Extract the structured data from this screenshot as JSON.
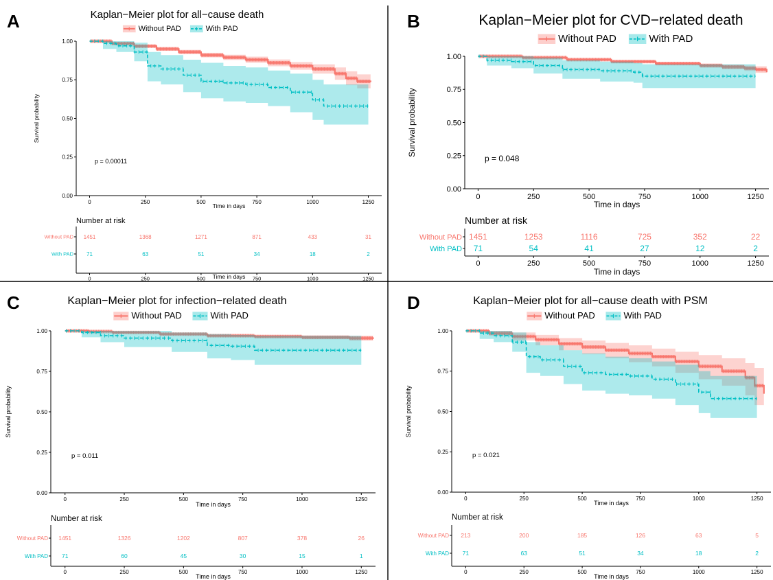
{
  "figure": {
    "title": ""
  },
  "legend_labels": [
    "Without PAD",
    "With PAD"
  ],
  "series_colors": {
    "Without PAD": "#F8766D",
    "With PAD": "#00BFC4"
  },
  "chart_data": [
    {
      "panel": "A",
      "type": "line",
      "subtype": "kaplan-meier",
      "title": "Kaplan−Meier plot for all−cause death",
      "xlabel": "Time in days",
      "ylabel": "Survival probability",
      "xlim": [
        -60,
        1310
      ],
      "ylim": [
        0,
        1
      ],
      "x_ticks": [
        0,
        250,
        500,
        750,
        1000,
        1250
      ],
      "y_ticks": [
        "0.00",
        "0.25",
        "0.50",
        "0.75",
        "1.00"
      ],
      "p_value": "p = 0.00011",
      "legend_position": "top",
      "series": [
        {
          "name": "Without PAD",
          "color": "#F8766D",
          "x": [
            0,
            100,
            200,
            300,
            400,
            500,
            600,
            700,
            800,
            900,
            1000,
            1100,
            1150,
            1200,
            1260
          ],
          "y": [
            1.0,
            0.985,
            0.968,
            0.95,
            0.93,
            0.91,
            0.895,
            0.88,
            0.86,
            0.84,
            0.82,
            0.79,
            0.76,
            0.74,
            0.735
          ],
          "lower": [
            1.0,
            0.978,
            0.958,
            0.938,
            0.916,
            0.895,
            0.878,
            0.86,
            0.838,
            0.815,
            0.79,
            0.75,
            0.715,
            0.695,
            0.69
          ],
          "upper": [
            1.0,
            0.992,
            0.978,
            0.962,
            0.944,
            0.925,
            0.912,
            0.9,
            0.882,
            0.865,
            0.85,
            0.83,
            0.805,
            0.785,
            0.78
          ]
        },
        {
          "name": "With PAD",
          "color": "#00BFC4",
          "x": [
            0,
            60,
            120,
            200,
            260,
            320,
            420,
            500,
            600,
            700,
            800,
            900,
            1000,
            1050,
            1250
          ],
          "y": [
            1.0,
            0.986,
            0.97,
            0.93,
            0.84,
            0.82,
            0.78,
            0.74,
            0.73,
            0.72,
            0.7,
            0.67,
            0.62,
            0.58,
            0.58
          ],
          "lower": [
            1.0,
            0.95,
            0.93,
            0.87,
            0.74,
            0.72,
            0.67,
            0.63,
            0.61,
            0.6,
            0.58,
            0.54,
            0.49,
            0.46,
            0.46
          ],
          "upper": [
            1.0,
            1.0,
            1.0,
            0.99,
            0.93,
            0.91,
            0.88,
            0.86,
            0.84,
            0.83,
            0.81,
            0.79,
            0.75,
            0.72,
            0.72
          ]
        }
      ],
      "risk_table": {
        "title": "Number at risk",
        "times": [
          0,
          250,
          500,
          750,
          1000,
          1250
        ],
        "rows": [
          {
            "name": "Without PAD",
            "values": [
              1451,
              1368,
              1271,
              871,
              433,
              31
            ]
          },
          {
            "name": "With PAD",
            "values": [
              71,
              63,
              51,
              34,
              18,
              2
            ]
          }
        ],
        "xlabel": "Time in days"
      }
    },
    {
      "panel": "B",
      "type": "line",
      "subtype": "kaplan-meier",
      "title": "Kaplan−Meier plot for CVD−related death",
      "xlabel": "Time in days",
      "ylabel": "Survival probability",
      "xlim": [
        -60,
        1310
      ],
      "ylim": [
        0,
        1
      ],
      "x_ticks": [
        0,
        250,
        500,
        750,
        1000,
        1250
      ],
      "y_ticks": [
        "0.00",
        "0.25",
        "0.50",
        "0.75",
        "1.00"
      ],
      "p_value": "p = 0.048",
      "legend_position": "top",
      "series": [
        {
          "name": "Without PAD",
          "color": "#F8766D",
          "x": [
            0,
            200,
            400,
            600,
            800,
            1000,
            1100,
            1200,
            1250,
            1300
          ],
          "y": [
            1.0,
            0.99,
            0.975,
            0.96,
            0.945,
            0.93,
            0.92,
            0.91,
            0.9,
            0.88
          ],
          "lower": [
            1.0,
            0.984,
            0.966,
            0.95,
            0.932,
            0.914,
            0.902,
            0.89,
            0.875,
            0.85
          ],
          "upper": [
            1.0,
            0.996,
            0.984,
            0.97,
            0.958,
            0.946,
            0.938,
            0.93,
            0.925,
            0.91
          ]
        },
        {
          "name": "With PAD",
          "color": "#00BFC4",
          "x": [
            0,
            40,
            150,
            250,
            380,
            550,
            700,
            740,
            1000,
            1250
          ],
          "y": [
            1.0,
            0.97,
            0.96,
            0.93,
            0.9,
            0.89,
            0.88,
            0.85,
            0.85,
            0.85
          ],
          "lower": [
            1.0,
            0.93,
            0.91,
            0.87,
            0.83,
            0.81,
            0.8,
            0.76,
            0.76,
            0.76
          ],
          "upper": [
            1.0,
            1.0,
            1.0,
            0.99,
            0.97,
            0.96,
            0.95,
            0.94,
            0.94,
            0.94
          ]
        }
      ],
      "risk_table": {
        "title": "Number at risk",
        "times": [
          0,
          250,
          500,
          750,
          1000,
          1250
        ],
        "rows": [
          {
            "name": "Without PAD",
            "values": [
              1451,
              1253,
              1116,
              725,
              352,
              22
            ]
          },
          {
            "name": "With PAD",
            "values": [
              71,
              54,
              41,
              27,
              12,
              2
            ]
          }
        ],
        "xlabel": "Time in days"
      }
    },
    {
      "panel": "C",
      "type": "line",
      "subtype": "kaplan-meier",
      "title": "Kaplan−Meier plot for infection−related death",
      "xlabel": "Time in days",
      "ylabel": "Survival probability",
      "xlim": [
        -60,
        1310
      ],
      "ylim": [
        0,
        1
      ],
      "x_ticks": [
        0,
        250,
        500,
        750,
        1000,
        1250
      ],
      "y_ticks": [
        "0.00",
        "0.25",
        "0.50",
        "0.75",
        "1.00"
      ],
      "p_value": "p = 0.011",
      "legend_position": "top",
      "series": [
        {
          "name": "Without PAD",
          "color": "#F8766D",
          "x": [
            0,
            100,
            200,
            400,
            600,
            800,
            1000,
            1200,
            1300
          ],
          "y": [
            1.0,
            0.996,
            0.99,
            0.98,
            0.97,
            0.965,
            0.96,
            0.955,
            0.95
          ],
          "lower": [
            1.0,
            0.992,
            0.985,
            0.973,
            0.962,
            0.955,
            0.948,
            0.94,
            0.935
          ],
          "upper": [
            1.0,
            1.0,
            0.995,
            0.987,
            0.978,
            0.975,
            0.972,
            0.97,
            0.965
          ]
        },
        {
          "name": "With PAD",
          "color": "#00BFC4",
          "x": [
            0,
            70,
            150,
            250,
            450,
            600,
            700,
            800,
            1000,
            1250
          ],
          "y": [
            1.0,
            0.99,
            0.97,
            0.955,
            0.94,
            0.91,
            0.905,
            0.88,
            0.88,
            0.88
          ],
          "lower": [
            1.0,
            0.96,
            0.93,
            0.9,
            0.87,
            0.83,
            0.82,
            0.79,
            0.79,
            0.79
          ],
          "upper": [
            1.0,
            1.0,
            1.0,
            1.0,
            0.99,
            0.98,
            0.975,
            0.97,
            0.97,
            0.97
          ]
        }
      ],
      "risk_table": {
        "title": "Number at risk",
        "times": [
          0,
          250,
          500,
          750,
          1000,
          1250
        ],
        "rows": [
          {
            "name": "Without PAD",
            "values": [
              1451,
              1326,
              1202,
              807,
              378,
              26
            ]
          },
          {
            "name": "With PAD",
            "values": [
              71,
              60,
              45,
              30,
              15,
              1
            ]
          }
        ],
        "xlabel": "Time in days"
      }
    },
    {
      "panel": "D",
      "type": "line",
      "subtype": "kaplan-meier",
      "title": "Kaplan−Meier plot for all−cause death with PSM",
      "xlabel": "Time in days",
      "ylabel": "Survival probability",
      "xlim": [
        -60,
        1310
      ],
      "ylim": [
        0,
        1
      ],
      "x_ticks": [
        0,
        250,
        500,
        750,
        1000,
        1250
      ],
      "y_ticks": [
        "0.00",
        "0.25",
        "0.50",
        "0.75",
        "1.00"
      ],
      "p_value": "p = 0.021",
      "legend_position": "top",
      "series": [
        {
          "name": "Without PAD",
          "color": "#F8766D",
          "x": [
            0,
            100,
            200,
            300,
            400,
            500,
            600,
            700,
            800,
            900,
            1000,
            1100,
            1200,
            1240,
            1280
          ],
          "y": [
            1.0,
            0.985,
            0.965,
            0.945,
            0.92,
            0.9,
            0.88,
            0.86,
            0.84,
            0.81,
            0.78,
            0.75,
            0.71,
            0.66,
            0.61
          ],
          "lower": [
            1.0,
            0.97,
            0.94,
            0.91,
            0.88,
            0.855,
            0.83,
            0.805,
            0.78,
            0.74,
            0.7,
            0.66,
            0.6,
            0.54,
            0.48
          ],
          "upper": [
            1.0,
            1.0,
            0.99,
            0.975,
            0.955,
            0.94,
            0.925,
            0.91,
            0.89,
            0.87,
            0.85,
            0.83,
            0.8,
            0.77,
            0.74
          ]
        },
        {
          "name": "With PAD",
          "color": "#00BFC4",
          "x": [
            0,
            60,
            120,
            200,
            260,
            320,
            420,
            500,
            600,
            700,
            800,
            900,
            1000,
            1050,
            1250
          ],
          "y": [
            1.0,
            0.986,
            0.97,
            0.93,
            0.84,
            0.82,
            0.78,
            0.74,
            0.73,
            0.72,
            0.7,
            0.67,
            0.62,
            0.58,
            0.58
          ],
          "lower": [
            1.0,
            0.95,
            0.93,
            0.87,
            0.74,
            0.72,
            0.67,
            0.63,
            0.61,
            0.6,
            0.58,
            0.54,
            0.49,
            0.46,
            0.46
          ],
          "upper": [
            1.0,
            1.0,
            1.0,
            0.99,
            0.93,
            0.91,
            0.88,
            0.86,
            0.84,
            0.83,
            0.81,
            0.79,
            0.75,
            0.72,
            0.72
          ]
        }
      ],
      "risk_table": {
        "title": "Number at risk",
        "times": [
          0,
          250,
          500,
          750,
          1000,
          1250
        ],
        "rows": [
          {
            "name": "Without PAD",
            "values": [
              213,
              200,
              185,
              126,
              63,
              5
            ]
          },
          {
            "name": "With PAD",
            "values": [
              71,
              63,
              51,
              34,
              18,
              2
            ]
          }
        ],
        "xlabel": "Time in days"
      }
    }
  ]
}
